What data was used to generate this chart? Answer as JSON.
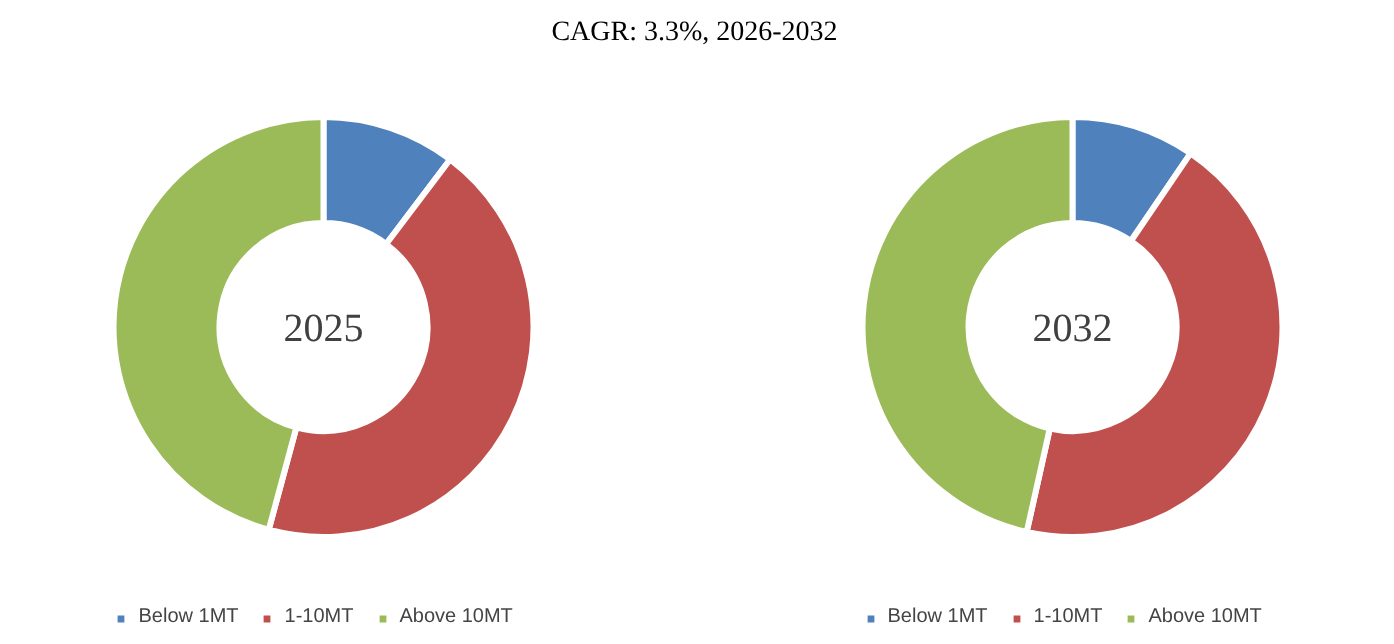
{
  "chart_data": [
    {
      "type": "donut",
      "title": "CAGR:  3.3%, 2026-2032",
      "annotations": [
        "2025"
      ],
      "categories": [
        "Below 1MT",
        "1-10MT",
        "Above 10MT"
      ],
      "values": [
        10.3,
        43.9,
        45.8
      ],
      "colors": [
        "#4f81bd",
        "#c0504d",
        "#9bbb59"
      ],
      "legend": "bottom"
    },
    {
      "type": "donut",
      "annotations": [
        "2032"
      ],
      "categories": [
        "Below 1MT",
        "1-10MT",
        "Above 10MT"
      ],
      "values": [
        9.5,
        44.0,
        46.5
      ],
      "colors": [
        "#4f81bd",
        "#c0504d",
        "#9bbb59"
      ],
      "legend": "bottom"
    }
  ]
}
